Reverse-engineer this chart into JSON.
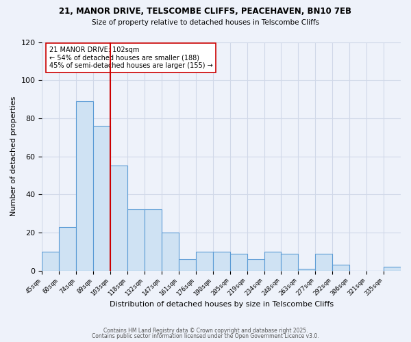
{
  "title_line1": "21, MANOR DRIVE, TELSCOMBE CLIFFS, PEACEHAVEN, BN10 7EB",
  "title_line2": "Size of property relative to detached houses in Telscombe Cliffs",
  "xlabel": "Distribution of detached houses by size in Telscombe Cliffs",
  "ylabel": "Number of detached properties",
  "bin_labels": [
    "45sqm",
    "60sqm",
    "74sqm",
    "89sqm",
    "103sqm",
    "118sqm",
    "132sqm",
    "147sqm",
    "161sqm",
    "176sqm",
    "190sqm",
    "205sqm",
    "219sqm",
    "234sqm",
    "248sqm",
    "263sqm",
    "277sqm",
    "292sqm",
    "306sqm",
    "321sqm",
    "335sqm"
  ],
  "bar_heights": [
    10,
    23,
    89,
    76,
    55,
    32,
    32,
    20,
    6,
    10,
    10,
    9,
    6,
    10,
    9,
    1,
    9,
    3,
    0,
    0,
    2
  ],
  "bar_color": "#cfe2f3",
  "bar_edge_color": "#5b9bd5",
  "vline_index": 4,
  "vline_color": "#cc0000",
  "annotation_text": "21 MANOR DRIVE: 102sqm\n← 54% of detached houses are smaller (188)\n45% of semi-detached houses are larger (155) →",
  "annotation_box_color": "#ffffff",
  "annotation_box_edge": "#cc0000",
  "ylim": [
    0,
    120
  ],
  "yticks": [
    0,
    20,
    40,
    60,
    80,
    100,
    120
  ],
  "grid_color": "#d0d8e8",
  "footnote1": "Contains HM Land Registry data © Crown copyright and database right 2025.",
  "footnote2": "Contains public sector information licensed under the Open Government Licence v3.0.",
  "bg_color": "#eef2fa",
  "plot_bg_color": "#eef2fa"
}
